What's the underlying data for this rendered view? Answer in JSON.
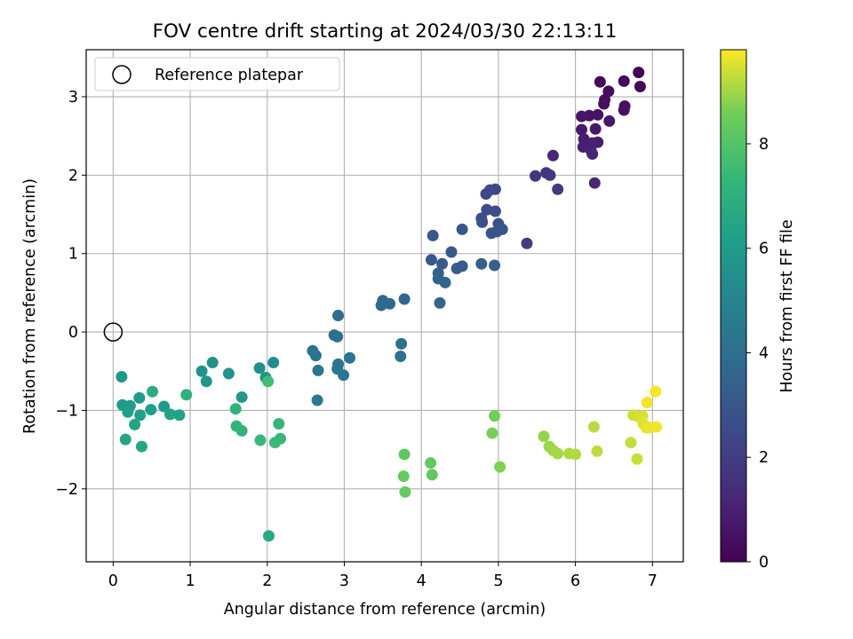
{
  "chart_data": {
    "type": "scatter",
    "title": "FOV centre drift starting at 2024/03/30 22:13:11",
    "xlabel": "Angular distance from reference (arcmin)",
    "ylabel": "Rotation from reference (arcmin)",
    "xlim": [
      -0.35,
      7.4
    ],
    "ylim": [
      -2.93,
      3.6
    ],
    "xticks": [
      0,
      1,
      2,
      3,
      4,
      5,
      6,
      7
    ],
    "yticks": [
      -2,
      -1,
      0,
      1,
      2,
      3
    ],
    "grid": true,
    "legend": {
      "position": "top-left",
      "entries": [
        "Reference platepar"
      ]
    },
    "reference_point": {
      "x": 0,
      "y": 0
    },
    "colorbar": {
      "label": "Hours from first FF file",
      "range": [
        0,
        9.8
      ],
      "ticks": [
        0,
        2,
        4,
        6,
        8
      ],
      "colormap": "viridis"
    },
    "points": [
      {
        "x": 6.82,
        "y": 3.31,
        "h": 0.1
      },
      {
        "x": 6.84,
        "y": 3.13,
        "h": 0.15
      },
      {
        "x": 6.63,
        "y": 3.2,
        "h": 0.2
      },
      {
        "x": 6.32,
        "y": 3.19,
        "h": 0.25
      },
      {
        "x": 6.43,
        "y": 3.07,
        "h": 0.3
      },
      {
        "x": 6.38,
        "y": 2.96,
        "h": 0.35
      },
      {
        "x": 6.37,
        "y": 2.91,
        "h": 0.4
      },
      {
        "x": 6.64,
        "y": 2.88,
        "h": 0.45
      },
      {
        "x": 6.63,
        "y": 2.83,
        "h": 0.5
      },
      {
        "x": 6.29,
        "y": 2.77,
        "h": 0.55
      },
      {
        "x": 6.18,
        "y": 2.76,
        "h": 0.6
      },
      {
        "x": 6.08,
        "y": 2.75,
        "h": 0.65
      },
      {
        "x": 6.44,
        "y": 2.69,
        "h": 0.7
      },
      {
        "x": 6.26,
        "y": 2.59,
        "h": 0.75
      },
      {
        "x": 6.08,
        "y": 2.58,
        "h": 0.8
      },
      {
        "x": 6.11,
        "y": 2.46,
        "h": 0.85
      },
      {
        "x": 6.29,
        "y": 2.42,
        "h": 0.9
      },
      {
        "x": 6.22,
        "y": 2.41,
        "h": 0.95
      },
      {
        "x": 6.1,
        "y": 2.36,
        "h": 1.0
      },
      {
        "x": 6.2,
        "y": 2.32,
        "h": 1.05
      },
      {
        "x": 6.22,
        "y": 2.27,
        "h": 1.1
      },
      {
        "x": 5.71,
        "y": 2.25,
        "h": 1.15
      },
      {
        "x": 6.25,
        "y": 1.9,
        "h": 1.2
      },
      {
        "x": 5.62,
        "y": 2.03,
        "h": 1.7
      },
      {
        "x": 5.67,
        "y": 2.0,
        "h": 1.75
      },
      {
        "x": 5.48,
        "y": 1.99,
        "h": 1.8
      },
      {
        "x": 5.77,
        "y": 1.82,
        "h": 1.85
      },
      {
        "x": 5.37,
        "y": 1.13,
        "h": 2.0
      },
      {
        "x": 4.96,
        "y": 1.82,
        "h": 2.4
      },
      {
        "x": 4.89,
        "y": 1.81,
        "h": 2.45
      },
      {
        "x": 4.84,
        "y": 1.76,
        "h": 2.5
      },
      {
        "x": 4.85,
        "y": 1.56,
        "h": 2.55
      },
      {
        "x": 4.96,
        "y": 1.54,
        "h": 2.6
      },
      {
        "x": 4.78,
        "y": 1.45,
        "h": 2.65
      },
      {
        "x": 4.79,
        "y": 1.4,
        "h": 2.7
      },
      {
        "x": 5.0,
        "y": 1.38,
        "h": 2.75
      },
      {
        "x": 5.05,
        "y": 1.31,
        "h": 2.8
      },
      {
        "x": 4.98,
        "y": 1.28,
        "h": 2.85
      },
      {
        "x": 4.91,
        "y": 1.26,
        "h": 2.9
      },
      {
        "x": 4.53,
        "y": 1.31,
        "h": 2.95
      },
      {
        "x": 4.15,
        "y": 1.23,
        "h": 3.0
      },
      {
        "x": 4.39,
        "y": 1.02,
        "h": 3.05
      },
      {
        "x": 4.13,
        "y": 0.92,
        "h": 3.1
      },
      {
        "x": 4.27,
        "y": 0.87,
        "h": 3.15
      },
      {
        "x": 4.53,
        "y": 0.84,
        "h": 3.2
      },
      {
        "x": 4.46,
        "y": 0.81,
        "h": 3.25
      },
      {
        "x": 4.78,
        "y": 0.87,
        "h": 3.3
      },
      {
        "x": 4.95,
        "y": 0.85,
        "h": 3.35
      },
      {
        "x": 4.22,
        "y": 0.75,
        "h": 3.4
      },
      {
        "x": 4.22,
        "y": 0.68,
        "h": 3.45
      },
      {
        "x": 4.31,
        "y": 0.63,
        "h": 3.5
      },
      {
        "x": 4.24,
        "y": 0.37,
        "h": 3.55
      },
      {
        "x": 3.78,
        "y": 0.42,
        "h": 3.6
      },
      {
        "x": 3.5,
        "y": 0.4,
        "h": 3.65
      },
      {
        "x": 3.59,
        "y": 0.36,
        "h": 3.7
      },
      {
        "x": 3.48,
        "y": 0.34,
        "h": 3.75
      },
      {
        "x": 2.92,
        "y": 0.21,
        "h": 3.9
      },
      {
        "x": 2.87,
        "y": -0.04,
        "h": 3.95
      },
      {
        "x": 2.91,
        "y": -0.06,
        "h": 4.0
      },
      {
        "x": 3.74,
        "y": -0.15,
        "h": 4.05
      },
      {
        "x": 3.73,
        "y": -0.31,
        "h": 4.1
      },
      {
        "x": 2.59,
        "y": -0.24,
        "h": 4.15
      },
      {
        "x": 2.63,
        "y": -0.3,
        "h": 4.2
      },
      {
        "x": 3.07,
        "y": -0.33,
        "h": 4.25
      },
      {
        "x": 2.92,
        "y": -0.41,
        "h": 4.3
      },
      {
        "x": 2.91,
        "y": -0.47,
        "h": 4.35
      },
      {
        "x": 2.66,
        "y": -0.49,
        "h": 4.4
      },
      {
        "x": 2.99,
        "y": -0.55,
        "h": 4.45
      },
      {
        "x": 2.65,
        "y": -0.87,
        "h": 4.5
      },
      {
        "x": 2.08,
        "y": -0.39,
        "h": 5.4
      },
      {
        "x": 1.29,
        "y": -0.39,
        "h": 5.5
      },
      {
        "x": 1.9,
        "y": -0.46,
        "h": 5.55
      },
      {
        "x": 1.15,
        "y": -0.5,
        "h": 5.6
      },
      {
        "x": 1.5,
        "y": -0.53,
        "h": 5.65
      },
      {
        "x": 1.98,
        "y": -0.58,
        "h": 5.7
      },
      {
        "x": 0.11,
        "y": -0.57,
        "h": 5.75
      },
      {
        "x": 1.21,
        "y": -0.63,
        "h": 5.8
      },
      {
        "x": 1.67,
        "y": -0.83,
        "h": 5.9
      },
      {
        "x": 0.34,
        "y": -0.84,
        "h": 5.95
      },
      {
        "x": 0.66,
        "y": -0.95,
        "h": 6.0
      },
      {
        "x": 0.12,
        "y": -0.93,
        "h": 6.05
      },
      {
        "x": 0.22,
        "y": -0.94,
        "h": 6.1
      },
      {
        "x": 0.49,
        "y": -0.99,
        "h": 6.15
      },
      {
        "x": 0.19,
        "y": -1.02,
        "h": 6.2
      },
      {
        "x": 0.35,
        "y": -1.06,
        "h": 6.25
      },
      {
        "x": 0.74,
        "y": -1.05,
        "h": 6.3
      },
      {
        "x": 0.86,
        "y": -1.06,
        "h": 6.35
      },
      {
        "x": 0.28,
        "y": -1.18,
        "h": 6.4
      },
      {
        "x": 0.16,
        "y": -1.37,
        "h": 6.45
      },
      {
        "x": 0.37,
        "y": -1.46,
        "h": 6.5
      },
      {
        "x": 2.02,
        "y": -2.6,
        "h": 6.6
      },
      {
        "x": 0.51,
        "y": -0.76,
        "h": 6.8
      },
      {
        "x": 0.95,
        "y": -0.8,
        "h": 7.0
      },
      {
        "x": 1.59,
        "y": -0.98,
        "h": 7.1
      },
      {
        "x": 1.6,
        "y": -1.2,
        "h": 7.15
      },
      {
        "x": 1.67,
        "y": -1.26,
        "h": 7.2
      },
      {
        "x": 2.15,
        "y": -1.17,
        "h": 7.3
      },
      {
        "x": 2.17,
        "y": -1.36,
        "h": 7.35
      },
      {
        "x": 1.91,
        "y": -1.38,
        "h": 7.4
      },
      {
        "x": 2.1,
        "y": -1.41,
        "h": 7.45
      },
      {
        "x": 2.01,
        "y": -0.63,
        "h": 7.6
      },
      {
        "x": 3.78,
        "y": -1.56,
        "h": 8.2
      },
      {
        "x": 4.12,
        "y": -1.67,
        "h": 8.25
      },
      {
        "x": 4.14,
        "y": -1.82,
        "h": 8.3
      },
      {
        "x": 3.77,
        "y": -1.84,
        "h": 8.35
      },
      {
        "x": 3.79,
        "y": -2.04,
        "h": 8.4
      },
      {
        "x": 4.95,
        "y": -1.07,
        "h": 8.6
      },
      {
        "x": 4.92,
        "y": -1.29,
        "h": 8.65
      },
      {
        "x": 5.02,
        "y": -1.72,
        "h": 8.7
      },
      {
        "x": 5.59,
        "y": -1.33,
        "h": 8.9
      },
      {
        "x": 5.66,
        "y": -1.46,
        "h": 8.95
      },
      {
        "x": 5.71,
        "y": -1.51,
        "h": 9.0
      },
      {
        "x": 5.77,
        "y": -1.55,
        "h": 9.05
      },
      {
        "x": 5.92,
        "y": -1.55,
        "h": 9.1
      },
      {
        "x": 6.0,
        "y": -1.56,
        "h": 9.15
      },
      {
        "x": 6.24,
        "y": -1.21,
        "h": 9.2
      },
      {
        "x": 6.28,
        "y": -1.52,
        "h": 9.25
      },
      {
        "x": 6.72,
        "y": -1.41,
        "h": 9.3
      },
      {
        "x": 6.8,
        "y": -1.62,
        "h": 9.35
      },
      {
        "x": 6.75,
        "y": -1.06,
        "h": 9.4
      },
      {
        "x": 6.82,
        "y": -1.08,
        "h": 9.45
      },
      {
        "x": 6.87,
        "y": -1.07,
        "h": 9.5
      },
      {
        "x": 6.88,
        "y": -1.17,
        "h": 9.55
      },
      {
        "x": 6.92,
        "y": -1.22,
        "h": 9.6
      },
      {
        "x": 6.96,
        "y": -1.22,
        "h": 9.65
      },
      {
        "x": 7.05,
        "y": -1.21,
        "h": 9.7
      },
      {
        "x": 6.93,
        "y": -0.9,
        "h": 9.72
      },
      {
        "x": 7.04,
        "y": -0.76,
        "h": 9.75
      }
    ]
  }
}
